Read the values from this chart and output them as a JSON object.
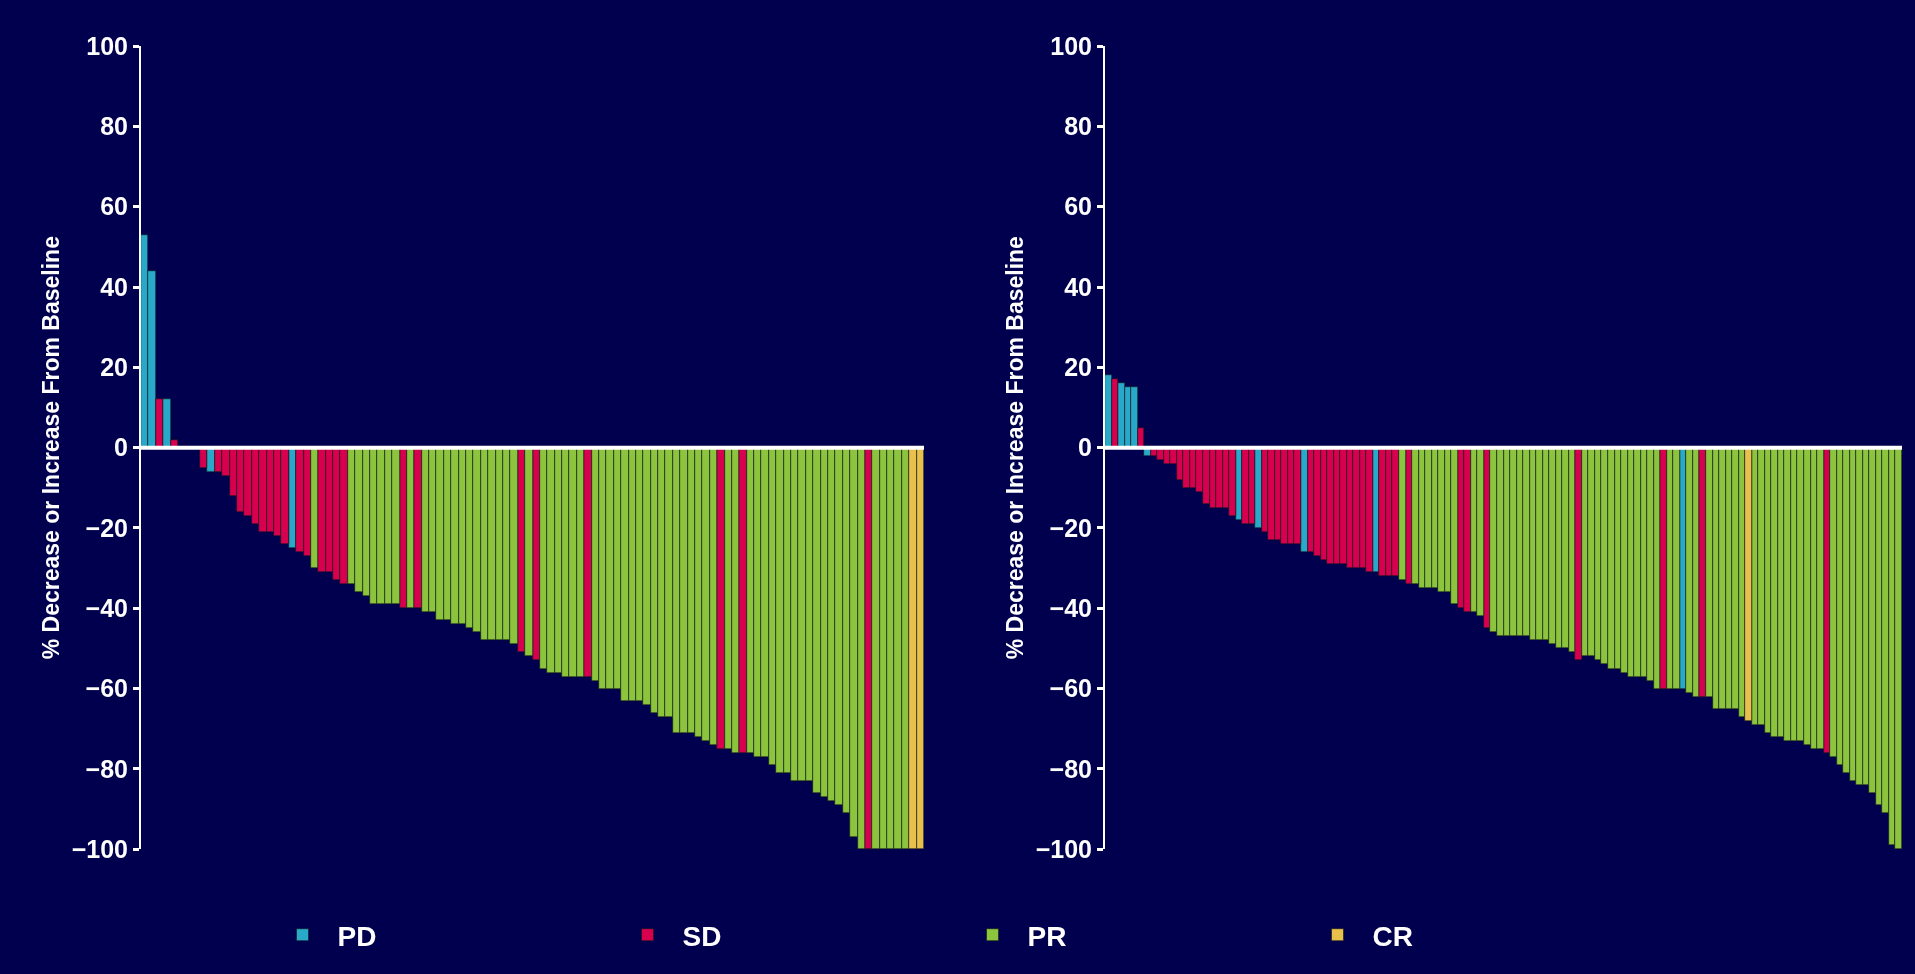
{
  "chart_data": [
    {
      "type": "bar",
      "ylabel": "% Decrease or Increase From Baseline",
      "ylim": [
        -100,
        100
      ],
      "yticks": [
        {
          "value": -100,
          "label": "−100"
        },
        {
          "value": -80,
          "label": "−80"
        },
        {
          "value": -60,
          "label": "−60"
        },
        {
          "value": -40,
          "label": "−40"
        },
        {
          "value": -20,
          "label": "−20"
        },
        0,
        20,
        40,
        60,
        80,
        100
      ],
      "legend": "bottom",
      "grid": false,
      "tick_labels": "y",
      "categories": [
        null,
        null,
        null,
        null,
        null,
        null,
        null,
        null,
        null,
        null,
        null,
        null,
        null,
        null,
        null,
        null,
        null,
        null,
        null,
        null,
        null,
        null,
        null,
        null,
        null,
        null,
        null,
        null,
        null,
        null,
        null,
        null,
        null,
        null,
        null,
        null,
        null,
        null,
        null,
        null,
        null,
        null,
        null,
        null,
        null,
        null,
        null,
        null,
        null,
        null,
        null,
        null,
        null,
        null,
        null,
        null,
        null,
        null,
        null,
        null,
        null,
        null,
        null,
        null,
        null,
        null,
        null,
        null,
        null,
        null,
        null,
        null,
        null,
        null,
        null,
        null,
        null,
        null,
        null,
        null,
        null,
        null,
        null,
        null,
        null,
        null,
        null,
        null,
        null,
        null,
        null,
        null,
        null,
        null,
        null,
        null,
        null,
        null,
        null,
        null,
        null,
        null,
        null,
        null,
        null,
        null
      ],
      "series": [
        {
          "name": "PD",
          "color": "#29a9c9",
          "values": [
            53,
            44,
            null,
            12,
            null,
            null,
            null,
            null,
            null,
            -6,
            null,
            null,
            null,
            null,
            null,
            null,
            null,
            null,
            null,
            null,
            -25,
            null,
            null,
            null,
            null,
            null,
            null,
            null,
            null,
            null,
            null,
            null,
            null,
            null,
            null,
            null,
            null,
            null,
            null,
            null,
            null,
            null,
            null,
            null,
            null,
            null,
            null,
            null,
            null,
            null,
            null,
            null,
            null,
            null,
            null,
            null,
            null,
            null,
            null,
            null,
            null,
            null,
            null,
            null,
            null,
            null,
            null,
            null,
            null,
            null,
            null,
            null,
            null,
            null,
            null,
            null,
            null,
            null,
            null,
            null,
            null,
            null,
            null,
            null,
            null,
            null,
            null,
            null,
            null,
            null,
            null,
            null,
            null,
            null,
            null,
            null,
            null,
            null,
            null,
            null,
            null,
            null,
            null,
            null,
            null,
            null
          ]
        },
        {
          "name": "SD",
          "color": "#d6004f",
          "values": [
            null,
            null,
            12,
            null,
            2,
            null,
            null,
            null,
            -5,
            null,
            -6,
            -7,
            -12,
            -16,
            -17,
            -19,
            -21,
            -21,
            -22,
            -24,
            null,
            -26,
            -27,
            null,
            -31,
            -31,
            -33,
            -34,
            null,
            null,
            null,
            null,
            null,
            null,
            null,
            -40,
            null,
            -40,
            null,
            null,
            null,
            null,
            null,
            null,
            null,
            null,
            null,
            null,
            null,
            null,
            null,
            -51,
            null,
            -53,
            null,
            null,
            null,
            null,
            null,
            null,
            -57,
            null,
            null,
            null,
            null,
            null,
            null,
            null,
            null,
            null,
            null,
            null,
            null,
            null,
            null,
            null,
            null,
            null,
            -75,
            null,
            null,
            -76,
            null,
            null,
            null,
            null,
            null,
            null,
            null,
            null,
            null,
            null,
            null,
            null,
            null,
            null,
            null,
            null,
            -100,
            null,
            null,
            null,
            null,
            null,
            null,
            null
          ]
        },
        {
          "name": "PR",
          "color": "#8cc43e",
          "values": [
            null,
            null,
            null,
            null,
            null,
            null,
            null,
            null,
            null,
            null,
            null,
            null,
            null,
            null,
            null,
            null,
            null,
            null,
            null,
            null,
            null,
            null,
            null,
            -30,
            null,
            null,
            null,
            null,
            -34,
            -36,
            -37,
            -39,
            -39,
            -39,
            -39,
            null,
            -40,
            null,
            -41,
            -41,
            -43,
            -43,
            -44,
            -44,
            -45,
            -46,
            -48,
            -48,
            -48,
            -48,
            -49,
            null,
            -52,
            null,
            -55,
            -56,
            -56,
            -57,
            -57,
            -57,
            null,
            -58,
            -60,
            -60,
            -60,
            -63,
            -63,
            -63,
            -64,
            -66,
            -67,
            -67,
            -71,
            -71,
            -71,
            -72,
            -73,
            -74,
            null,
            -75,
            -76,
            null,
            -76,
            -77,
            -77,
            -79,
            -81,
            -81,
            -83,
            -83,
            -83,
            -86,
            -87,
            -88,
            -89,
            -91,
            -97,
            -100,
            null,
            -100,
            -100,
            -100,
            -100,
            -100,
            null,
            null
          ]
        },
        {
          "name": "CR",
          "color": "#e8c14c",
          "values": [
            null,
            null,
            null,
            null,
            null,
            null,
            null,
            null,
            null,
            null,
            null,
            null,
            null,
            null,
            null,
            null,
            null,
            null,
            null,
            null,
            null,
            null,
            null,
            null,
            null,
            null,
            null,
            null,
            null,
            null,
            null,
            null,
            null,
            null,
            null,
            null,
            null,
            null,
            null,
            null,
            null,
            null,
            null,
            null,
            null,
            null,
            null,
            null,
            null,
            null,
            null,
            null,
            null,
            null,
            null,
            null,
            null,
            null,
            null,
            null,
            null,
            null,
            null,
            null,
            null,
            null,
            null,
            null,
            null,
            null,
            null,
            null,
            null,
            null,
            null,
            null,
            null,
            null,
            null,
            null,
            null,
            null,
            null,
            null,
            null,
            null,
            null,
            null,
            null,
            null,
            null,
            null,
            null,
            null,
            null,
            null,
            null,
            null,
            null,
            null,
            null,
            null,
            null,
            null,
            -100,
            -100
          ]
        }
      ],
      "ref_lines": [
        {
          "axis": "y",
          "value": 0,
          "color": "#ffffff"
        }
      ]
    },
    {
      "type": "bar",
      "ylabel": "% Decrease or Increase From Baseline",
      "ylim": [
        -100,
        100
      ],
      "yticks": [
        {
          "value": -100,
          "label": "−100"
        },
        {
          "value": -80,
          "label": "−80"
        },
        {
          "value": -60,
          "label": "−60"
        },
        {
          "value": -40,
          "label": "−40"
        },
        {
          "value": -20,
          "label": "−20"
        },
        0,
        20,
        40,
        60,
        80,
        100
      ],
      "legend": "bottom",
      "grid": false,
      "tick_labels": "y",
      "categories": [
        null,
        null,
        null,
        null,
        null,
        null,
        null,
        null,
        null,
        null,
        null,
        null,
        null,
        null,
        null,
        null,
        null,
        null,
        null,
        null,
        null,
        null,
        null,
        null,
        null,
        null,
        null,
        null,
        null,
        null,
        null,
        null,
        null,
        null,
        null,
        null,
        null,
        null,
        null,
        null,
        null,
        null,
        null,
        null,
        null,
        null,
        null,
        null,
        null,
        null,
        null,
        null,
        null,
        null,
        null,
        null,
        null,
        null,
        null,
        null,
        null,
        null,
        null,
        null,
        null,
        null,
        null,
        null,
        null,
        null,
        null,
        null,
        null,
        null,
        null,
        null,
        null,
        null,
        null,
        null,
        null,
        null,
        null,
        null,
        null,
        null,
        null,
        null,
        null,
        null,
        null,
        null,
        null,
        null,
        null,
        null,
        null,
        null,
        null,
        null,
        null,
        null,
        null,
        null,
        null,
        null,
        null,
        null,
        null,
        null,
        null,
        null,
        null,
        null,
        null,
        null,
        null,
        null,
        null,
        null,
        null,
        null
      ],
      "series": [
        {
          "name": "PD",
          "color": "#29a9c9",
          "values": [
            18,
            null,
            16,
            15,
            15,
            null,
            -2,
            null,
            null,
            null,
            null,
            null,
            null,
            null,
            null,
            null,
            null,
            null,
            null,
            null,
            -18,
            null,
            null,
            -20,
            null,
            null,
            null,
            null,
            null,
            null,
            -26,
            null,
            null,
            null,
            null,
            null,
            null,
            null,
            null,
            null,
            null,
            -31,
            null,
            null,
            null,
            null,
            null,
            null,
            null,
            null,
            null,
            null,
            null,
            null,
            null,
            null,
            null,
            null,
            null,
            null,
            null,
            null,
            null,
            null,
            null,
            null,
            null,
            null,
            null,
            null,
            null,
            null,
            null,
            null,
            null,
            null,
            null,
            null,
            null,
            null,
            null,
            null,
            null,
            null,
            null,
            null,
            null,
            null,
            -60,
            null,
            null,
            null,
            null,
            null,
            null,
            null,
            null,
            null,
            null,
            null,
            null,
            null,
            null,
            null,
            null,
            null,
            null,
            null,
            null,
            null,
            null,
            null,
            null,
            null,
            null,
            null,
            null,
            null,
            null,
            null,
            null,
            null
          ]
        },
        {
          "name": "SD",
          "color": "#d6004f",
          "values": [
            null,
            17,
            null,
            null,
            null,
            5,
            null,
            -2,
            -3,
            -4,
            -4,
            -8,
            -10,
            -10,
            -11,
            -14,
            -15,
            -15,
            -15,
            -17,
            null,
            -19,
            -19,
            null,
            -21,
            -23,
            -23,
            -24,
            -24,
            -24,
            null,
            -26,
            -27,
            -28,
            -29,
            -29,
            -29,
            -30,
            -30,
            -30,
            -31,
            null,
            -32,
            -32,
            -32,
            null,
            -34,
            null,
            null,
            null,
            null,
            null,
            null,
            null,
            -40,
            -41,
            null,
            null,
            -45,
            null,
            null,
            null,
            null,
            null,
            null,
            null,
            null,
            null,
            null,
            null,
            null,
            null,
            -53,
            null,
            null,
            null,
            null,
            null,
            null,
            null,
            null,
            null,
            null,
            null,
            null,
            -60,
            null,
            null,
            null,
            null,
            null,
            -62,
            null,
            null,
            null,
            null,
            null,
            null,
            null,
            null,
            null,
            null,
            null,
            null,
            null,
            null,
            null,
            null,
            null,
            null,
            -76,
            null,
            null,
            null,
            null,
            null,
            null,
            null,
            null,
            null,
            null,
            null
          ]
        },
        {
          "name": "PR",
          "color": "#8cc43e",
          "values": [
            null,
            null,
            null,
            null,
            null,
            null,
            null,
            null,
            null,
            null,
            null,
            null,
            null,
            null,
            null,
            null,
            null,
            null,
            null,
            null,
            null,
            null,
            null,
            null,
            null,
            null,
            null,
            null,
            null,
            null,
            null,
            null,
            null,
            null,
            null,
            null,
            null,
            null,
            null,
            null,
            null,
            null,
            null,
            null,
            null,
            -33,
            null,
            -34,
            -35,
            -35,
            -35,
            -36,
            -36,
            -39,
            null,
            null,
            -41,
            -42,
            null,
            -46,
            -47,
            -47,
            -47,
            -47,
            -47,
            -48,
            -48,
            -48,
            -49,
            -50,
            -50,
            -51,
            null,
            -52,
            -52,
            -53,
            -54,
            -55,
            -55,
            -56,
            -57,
            -57,
            -57,
            -58,
            -60,
            null,
            -60,
            -60,
            null,
            -61,
            -62,
            null,
            -62,
            -65,
            -65,
            -65,
            -65,
            -67,
            null,
            -69,
            -69,
            -71,
            -72,
            -72,
            -73,
            -73,
            -73,
            -74,
            -75,
            -75,
            null,
            -77,
            -79,
            -81,
            -83,
            -84,
            -84,
            -86,
            -89,
            -91,
            -99,
            -100
          ]
        },
        {
          "name": "CR",
          "color": "#e8c14c",
          "values": [
            null,
            null,
            null,
            null,
            null,
            null,
            null,
            null,
            null,
            null,
            null,
            null,
            null,
            null,
            null,
            null,
            null,
            null,
            null,
            null,
            null,
            null,
            null,
            null,
            null,
            null,
            null,
            null,
            null,
            null,
            null,
            null,
            null,
            null,
            null,
            null,
            null,
            null,
            null,
            null,
            null,
            null,
            null,
            null,
            null,
            null,
            null,
            null,
            null,
            null,
            null,
            null,
            null,
            null,
            null,
            null,
            null,
            null,
            null,
            null,
            null,
            null,
            null,
            null,
            null,
            null,
            null,
            null,
            null,
            null,
            null,
            null,
            null,
            null,
            null,
            null,
            null,
            null,
            null,
            null,
            null,
            null,
            null,
            null,
            null,
            null,
            null,
            null,
            null,
            null,
            null,
            null,
            null,
            null,
            null,
            null,
            null,
            null,
            -68,
            null,
            null,
            null,
            null,
            null,
            null,
            null,
            null,
            null,
            null,
            null,
            null,
            null,
            null,
            null,
            null,
            null,
            null,
            null,
            null,
            null,
            null,
            null
          ]
        }
      ],
      "ref_lines": [
        {
          "axis": "y",
          "value": 0,
          "color": "#ffffff"
        }
      ]
    }
  ]
}
